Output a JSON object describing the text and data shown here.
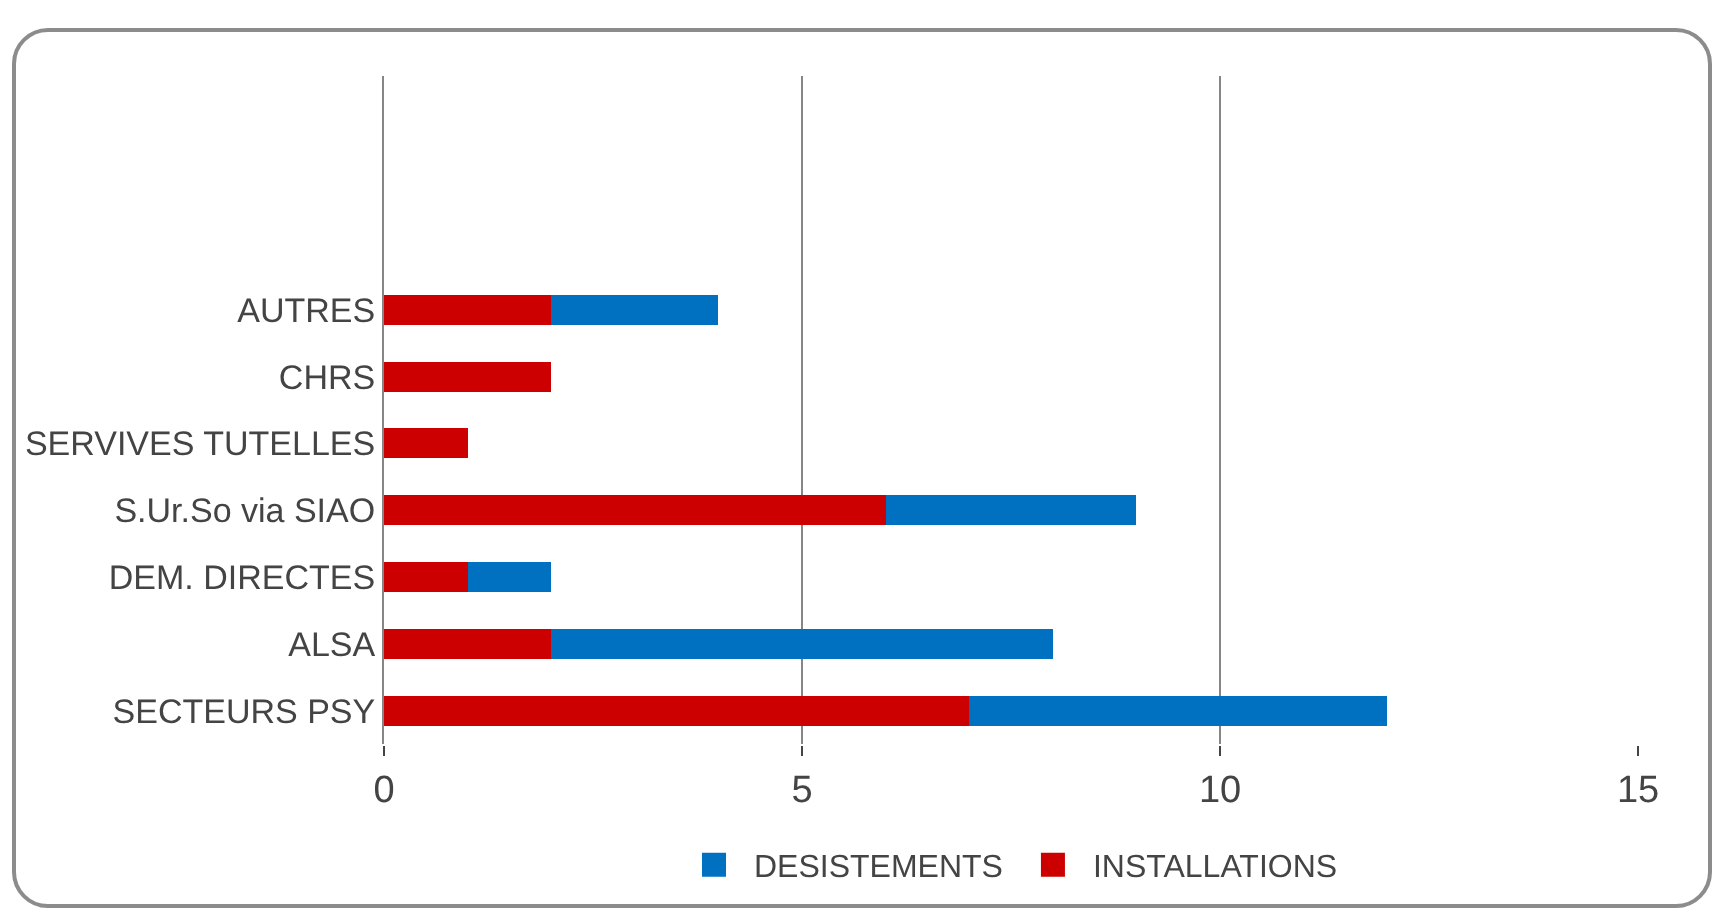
{
  "chart_data": {
    "type": "bar",
    "orientation": "horizontal",
    "stacked": true,
    "categories": [
      null,
      null,
      null,
      "AUTRES",
      "CHRS",
      "SERVIVES TUTELLES",
      "S.Ur.So via SIAO",
      "DEM. DIRECTES",
      "ALSA",
      "SECTEURS PSY"
    ],
    "series": [
      {
        "name": "INSTALLATIONS",
        "color": "#cc0000",
        "values": [
          null,
          null,
          null,
          2,
          2,
          1,
          6,
          1,
          2,
          7
        ]
      },
      {
        "name": "DESISTEMENTS",
        "color": "#0070c0",
        "values": [
          null,
          null,
          null,
          2,
          0,
          0,
          3,
          1,
          6,
          5
        ]
      }
    ],
    "xlim": [
      0,
      15
    ],
    "xticks": [
      0,
      5,
      10,
      15
    ],
    "grid": "x",
    "legend": "bottom"
  }
}
